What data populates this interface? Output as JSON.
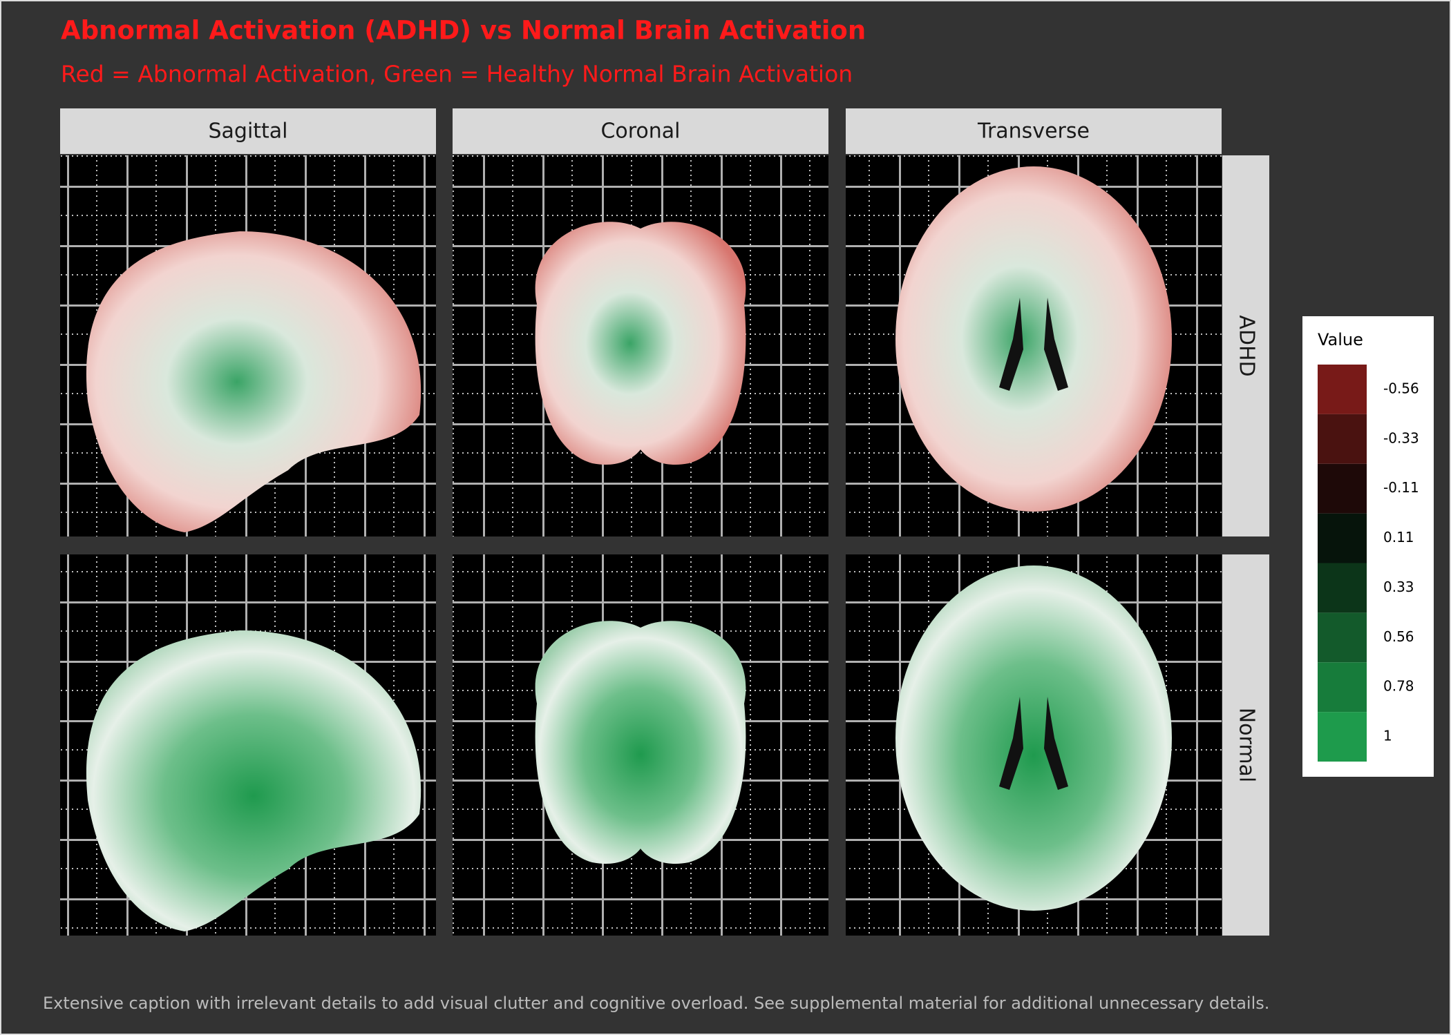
{
  "chart_data": {
    "type": "raster",
    "title": "Abnormal Activation (ADHD) vs Normal Brain Activation",
    "subtitle": "Red = Abnormal Activation, Green = Healthy Normal Brain Activation",
    "caption": "Extensive caption with irrelevant details to add visual clutter and cognitive overload. See supplemental material for additional unnecessary details.",
    "facet_cols": [
      "Sagittal",
      "Coronal",
      "Transverse"
    ],
    "facet_rows": [
      "ADHD",
      "Normal"
    ],
    "legend": {
      "title": "Value",
      "items": [
        {
          "value": -0.56,
          "color": "#781a18"
        },
        {
          "value": -0.33,
          "color": "#4a1210"
        },
        {
          "value": -0.11,
          "color": "#1e0908"
        },
        {
          "value": 0.11,
          "color": "#06140b"
        },
        {
          "value": 0.33,
          "color": "#0c3519"
        },
        {
          "value": 0.56,
          "color": "#135a2b"
        },
        {
          "value": 0.78,
          "color": "#177c3b"
        },
        {
          "value": 1,
          "color": "#1e9b4c"
        }
      ]
    }
  }
}
